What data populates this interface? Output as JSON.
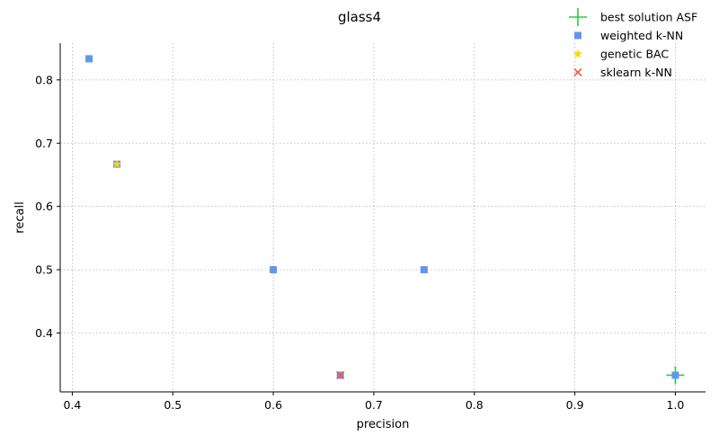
{
  "chart_data": {
    "type": "scatter",
    "title": "glass4",
    "xlabel": "precision",
    "ylabel": "recall",
    "xlim": [
      0.388,
      1.03
    ],
    "ylim": [
      0.307,
      0.858
    ],
    "xticks": [
      0.4,
      0.5,
      0.6,
      0.7,
      0.8,
      0.9,
      1.0
    ],
    "xtick_labels": [
      "0.4",
      "0.5",
      "0.6",
      "0.7",
      "0.8",
      "0.9",
      "1.0"
    ],
    "yticks": [
      0.4,
      0.5,
      0.6,
      0.7,
      0.8
    ],
    "ytick_labels": [
      "0.4",
      "0.5",
      "0.6",
      "0.7",
      "0.8"
    ],
    "grid": true,
    "legend_position": "top-right",
    "series": [
      {
        "name": "best solution ASF",
        "marker": "plus",
        "color": "#2ecc40",
        "points": [
          [
            1.0,
            0.3333
          ]
        ]
      },
      {
        "name": "weighted k-NN",
        "marker": "square",
        "color": "#6495ed",
        "points": [
          [
            0.4167,
            0.8333
          ],
          [
            0.4444,
            0.6667
          ],
          [
            0.6,
            0.5
          ],
          [
            0.6667,
            0.3333
          ],
          [
            0.75,
            0.5
          ],
          [
            1.0,
            0.3333
          ]
        ]
      },
      {
        "name": "genetic BAC",
        "marker": "star",
        "color": "#ffd700",
        "points": [
          [
            0.4444,
            0.6667
          ]
        ]
      },
      {
        "name": "sklearn k-NN",
        "marker": "x",
        "color": "#ff5733",
        "points": [
          [
            0.6667,
            0.3333
          ]
        ]
      }
    ]
  }
}
